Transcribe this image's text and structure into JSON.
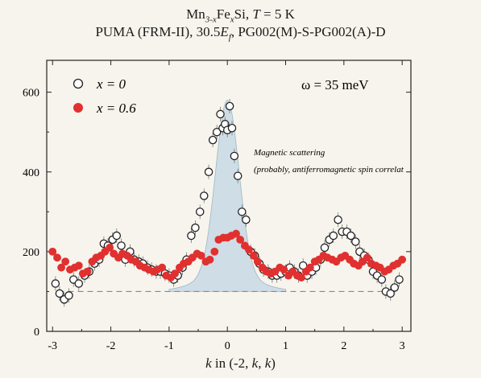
{
  "title": {
    "formula_base": "Mn",
    "formula_sub1": "3-x",
    "formula_mid": "Fe",
    "formula_sub2": "x",
    "formula_end": "Si, ",
    "temp_symbol": "T",
    "temp_value": " = 5 K",
    "line2_start": "PUMA (FRM-II), 30.5",
    "line2_E": "E",
    "line2_Esub": "f",
    "line2_end": ", PG002(M)-S-PG002(A)-D"
  },
  "xlabel": {
    "var": "k",
    "text": " in (-2, ",
    "k2": "k",
    "comma": ", ",
    "k3": "k",
    "close": ")"
  },
  "annotation": {
    "omega": "ω = 35 meV",
    "line1": "Magnetic scattering",
    "line2": "(probably, antiferromagnetic spin correlat"
  },
  "legend": [
    {
      "label": "x = 0",
      "marker": "open-circle"
    },
    {
      "label": "x = 0.6",
      "marker": "filled-circle"
    }
  ],
  "chart_data": {
    "type": "scatter",
    "xlim": [
      -3.1,
      3.15
    ],
    "ylim": [
      0,
      680
    ],
    "xticks": [
      -3,
      -2,
      -1,
      0,
      1,
      2,
      3
    ],
    "yticks": [
      0,
      200,
      400,
      600
    ],
    "background_level": 100,
    "colors": {
      "open": "#222222",
      "filled": "#e03030",
      "shade": "#cfdde6",
      "dash": "#888888"
    },
    "series": [
      {
        "name": "x = 0",
        "x": [
          -2.95,
          -2.88,
          -2.8,
          -2.72,
          -2.64,
          -2.55,
          -2.45,
          -2.37,
          -2.28,
          -2.2,
          -2.12,
          -2.05,
          -1.97,
          -1.9,
          -1.82,
          -1.75,
          -1.67,
          -1.6,
          -1.52,
          -1.45,
          -1.37,
          -1.3,
          -1.22,
          -1.15,
          -1.07,
          -1.0,
          -0.92,
          -0.85,
          -0.77,
          -0.7,
          -0.62,
          -0.55,
          -0.47,
          -0.4,
          -0.32,
          -0.25,
          -0.18,
          -0.12,
          -0.08,
          -0.04,
          0.0,
          0.04,
          0.08,
          0.12,
          0.18,
          0.25,
          0.32,
          0.4,
          0.47,
          0.55,
          0.62,
          0.7,
          0.77,
          0.85,
          0.92,
          1.0,
          1.07,
          1.15,
          1.22,
          1.3,
          1.37,
          1.45,
          1.52,
          1.6,
          1.67,
          1.75,
          1.82,
          1.9,
          1.97,
          2.05,
          2.12,
          2.2,
          2.27,
          2.35,
          2.42,
          2.5,
          2.57,
          2.65,
          2.72,
          2.8,
          2.87,
          2.95
        ],
        "y": [
          120,
          95,
          80,
          90,
          130,
          120,
          140,
          150,
          170,
          180,
          220,
          215,
          230,
          240,
          215,
          180,
          200,
          180,
          175,
          170,
          160,
          155,
          150,
          150,
          145,
          140,
          130,
          140,
          160,
          180,
          240,
          260,
          300,
          340,
          400,
          480,
          500,
          545,
          510,
          520,
          505,
          565,
          510,
          440,
          390,
          300,
          280,
          200,
          190,
          170,
          155,
          150,
          140,
          140,
          145,
          150,
          160,
          150,
          140,
          165,
          140,
          150,
          160,
          180,
          210,
          230,
          240,
          280,
          250,
          250,
          240,
          225,
          200,
          190,
          180,
          150,
          140,
          130,
          100,
          95,
          110,
          130
        ]
      },
      {
        "name": "x = 0.6",
        "x": [
          -3.0,
          -2.92,
          -2.85,
          -2.78,
          -2.7,
          -2.62,
          -2.55,
          -2.48,
          -2.4,
          -2.32,
          -2.25,
          -2.17,
          -2.1,
          -2.02,
          -1.95,
          -1.87,
          -1.8,
          -1.72,
          -1.65,
          -1.57,
          -1.5,
          -1.42,
          -1.35,
          -1.27,
          -1.2,
          -1.12,
          -1.05,
          -0.97,
          -0.9,
          -0.82,
          -0.75,
          -0.67,
          -0.6,
          -0.52,
          -0.45,
          -0.37,
          -0.3,
          -0.22,
          -0.15,
          -0.07,
          0.0,
          0.07,
          0.15,
          0.22,
          0.3,
          0.37,
          0.45,
          0.52,
          0.6,
          0.67,
          0.75,
          0.82,
          0.9,
          0.97,
          1.05,
          1.12,
          1.2,
          1.27,
          1.35,
          1.42,
          1.5,
          1.57,
          1.65,
          1.72,
          1.8,
          1.87,
          1.95,
          2.02,
          2.1,
          2.17,
          2.25,
          2.32,
          2.4,
          2.47,
          2.55,
          2.62,
          2.7,
          2.77,
          2.85,
          2.92,
          3.0
        ],
        "y": [
          200,
          185,
          160,
          175,
          155,
          160,
          165,
          145,
          150,
          175,
          185,
          190,
          200,
          210,
          195,
          185,
          195,
          190,
          180,
          175,
          165,
          160,
          155,
          150,
          155,
          160,
          140,
          135,
          145,
          160,
          170,
          175,
          185,
          195,
          190,
          175,
          180,
          200,
          230,
          235,
          235,
          240,
          245,
          230,
          215,
          205,
          190,
          175,
          160,
          150,
          145,
          150,
          160,
          155,
          140,
          150,
          140,
          135,
          150,
          160,
          175,
          180,
          190,
          185,
          180,
          175,
          185,
          190,
          180,
          170,
          165,
          175,
          185,
          170,
          165,
          160,
          150,
          155,
          165,
          170,
          180
        ]
      }
    ]
  }
}
